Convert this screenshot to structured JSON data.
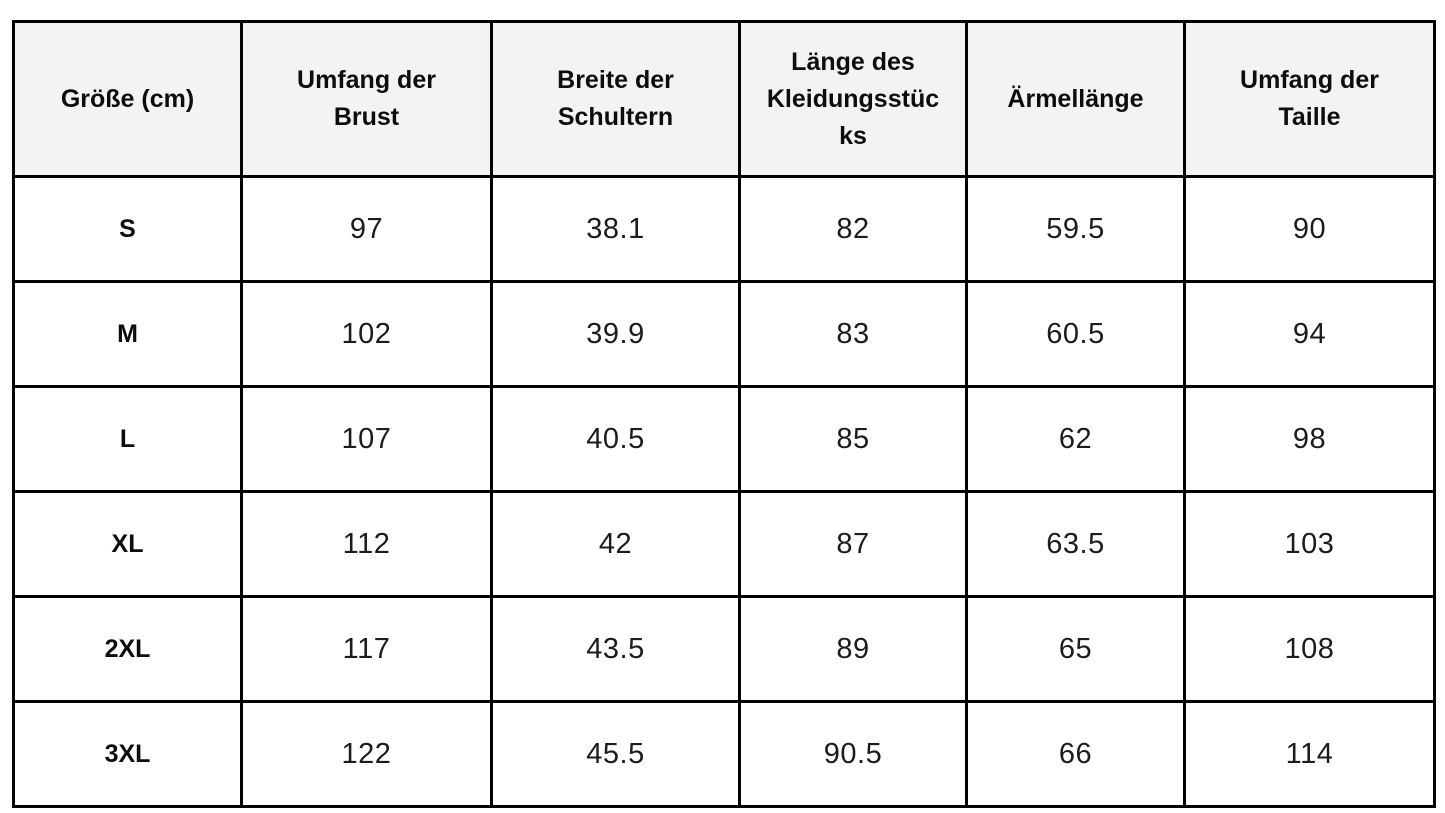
{
  "chart_data": {
    "type": "table",
    "columns": [
      "Größe (cm)",
      "Umfang der Brust",
      "Breite der Schultern",
      "Länge des Kleidungsstücks",
      "Ärmellänge",
      "Umfang der Taille"
    ],
    "rows": [
      [
        "S",
        97,
        38.1,
        82,
        59.5,
        90
      ],
      [
        "M",
        102,
        39.9,
        83,
        60.5,
        94
      ],
      [
        "L",
        107,
        40.5,
        85,
        62,
        98
      ],
      [
        "XL",
        112,
        42,
        87,
        63.5,
        103
      ],
      [
        "2XL",
        117,
        43.5,
        89,
        65,
        108
      ],
      [
        "3XL",
        122,
        45.5,
        90.5,
        66,
        114
      ]
    ],
    "layout": {
      "header_position": "top",
      "grid": true
    },
    "colors": {
      "header_background": "#f3f3f2",
      "row_background": "#ffffff",
      "border": "#000000",
      "header_text": "#0d0d0d",
      "cell_text": "#1c1c1c",
      "page_background": "#ffffff"
    }
  }
}
